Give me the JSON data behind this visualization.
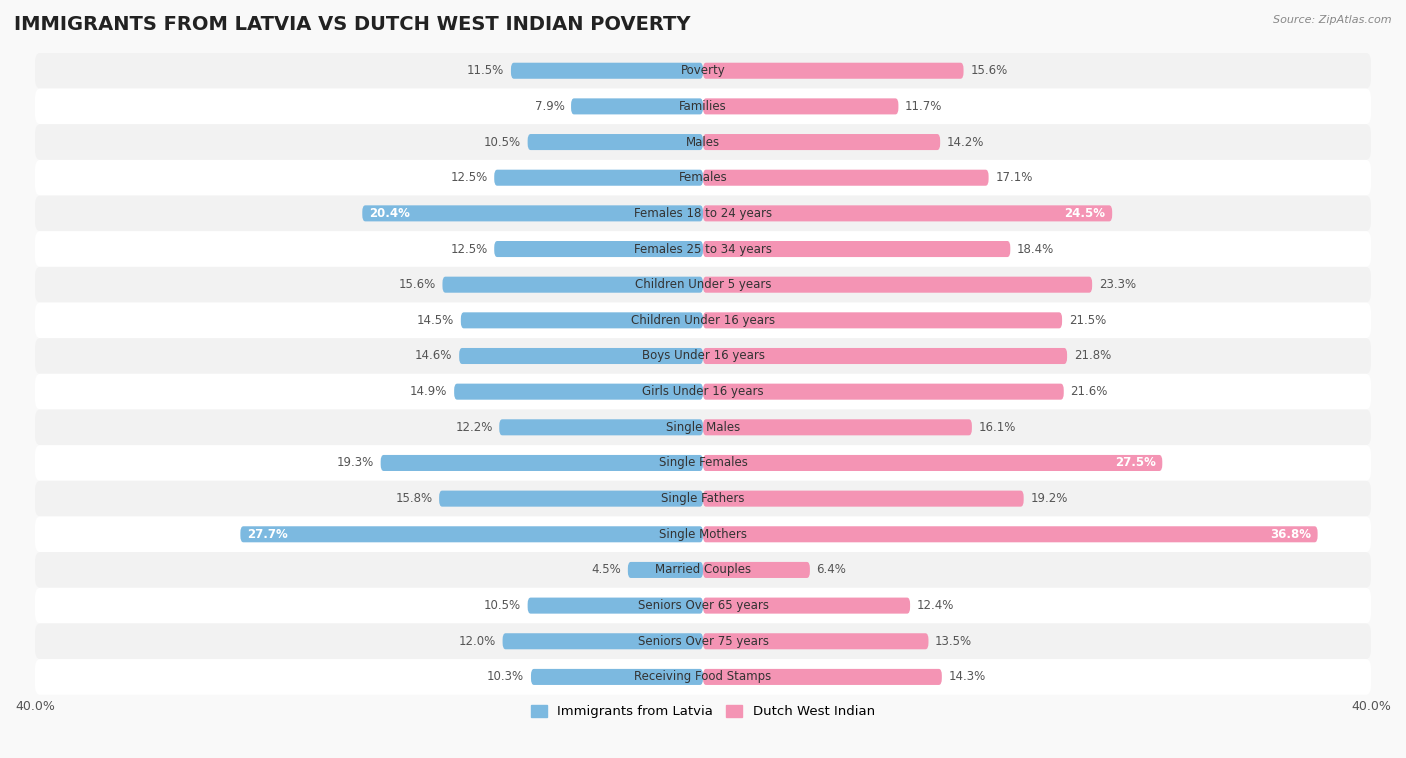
{
  "title": "IMMIGRANTS FROM LATVIA VS DUTCH WEST INDIAN POVERTY",
  "source": "Source: ZipAtlas.com",
  "categories": [
    "Poverty",
    "Families",
    "Males",
    "Females",
    "Females 18 to 24 years",
    "Females 25 to 34 years",
    "Children Under 5 years",
    "Children Under 16 years",
    "Boys Under 16 years",
    "Girls Under 16 years",
    "Single Males",
    "Single Females",
    "Single Fathers",
    "Single Mothers",
    "Married Couples",
    "Seniors Over 65 years",
    "Seniors Over 75 years",
    "Receiving Food Stamps"
  ],
  "latvia_values": [
    11.5,
    7.9,
    10.5,
    12.5,
    20.4,
    12.5,
    15.6,
    14.5,
    14.6,
    14.9,
    12.2,
    19.3,
    15.8,
    27.7,
    4.5,
    10.5,
    12.0,
    10.3
  ],
  "dutch_values": [
    15.6,
    11.7,
    14.2,
    17.1,
    24.5,
    18.4,
    23.3,
    21.5,
    21.8,
    21.6,
    16.1,
    27.5,
    19.2,
    36.8,
    6.4,
    12.4,
    13.5,
    14.3
  ],
  "latvia_color": "#7CB9E0",
  "dutch_color": "#F494B4",
  "latvia_label": "Immigrants from Latvia",
  "dutch_label": "Dutch West Indian",
  "xlim": 40.0,
  "bar_height": 0.45,
  "bg_color_light": "#f0f0f0",
  "bg_color_dark": "#e0e0e0",
  "row_colors": [
    "#f2f2f2",
    "#ffffff"
  ],
  "title_fontsize": 14,
  "label_fontsize": 8.5,
  "value_fontsize": 8.5,
  "axis_label_fontsize": 9,
  "fig_bg": "#f9f9f9"
}
